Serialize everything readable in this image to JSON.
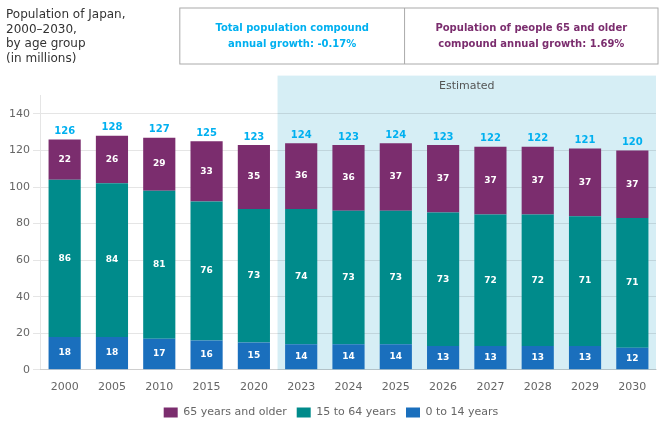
{
  "chart_data": {
    "type": "bar",
    "title": [
      "Population of Japan,",
      "2000–2030,",
      "by age group",
      "(in millions)"
    ],
    "categories": [
      "2000",
      "2005",
      "2010",
      "2015",
      "2020",
      "2023",
      "2024",
      "2025",
      "2026",
      "2027",
      "2028",
      "2029",
      "2030"
    ],
    "series": [
      {
        "name": "0 to 14 years",
        "color": "#1a6fbd",
        "values": [
          18,
          18,
          17,
          16,
          15,
          14,
          14,
          14,
          13,
          13,
          13,
          13,
          12
        ]
      },
      {
        "name": "15 to 64 years",
        "color": "#008b8b",
        "values": [
          86,
          84,
          81,
          76,
          73,
          74,
          73,
          73,
          73,
          72,
          72,
          71,
          71
        ]
      },
      {
        "name": "65 years and older",
        "color": "#7b2d6e",
        "values": [
          22,
          26,
          29,
          33,
          35,
          36,
          36,
          37,
          37,
          37,
          37,
          37,
          37
        ]
      }
    ],
    "totals": {
      "values": [
        126,
        128,
        127,
        125,
        123,
        124,
        123,
        124,
        123,
        122,
        122,
        121,
        120
      ],
      "color": "#00b0f0"
    },
    "annotations": [
      {
        "text": "Estimated",
        "from": "2023",
        "to": "2030",
        "color": "#d6eef5"
      },
      {
        "text": [
          "Total population compound",
          "annual growth: -0.17%"
        ],
        "color": "#00b0f0"
      },
      {
        "text": [
          "Population of people 65 and older",
          "compound annual growth: 1.69%"
        ],
        "color": "#7b2d6e"
      }
    ],
    "ylim": [
      0,
      150
    ],
    "yticks": [
      0,
      20,
      40,
      60,
      80,
      100,
      120,
      140
    ],
    "stacked": true,
    "data_labels": true,
    "grid": true,
    "legend": "bottom"
  }
}
